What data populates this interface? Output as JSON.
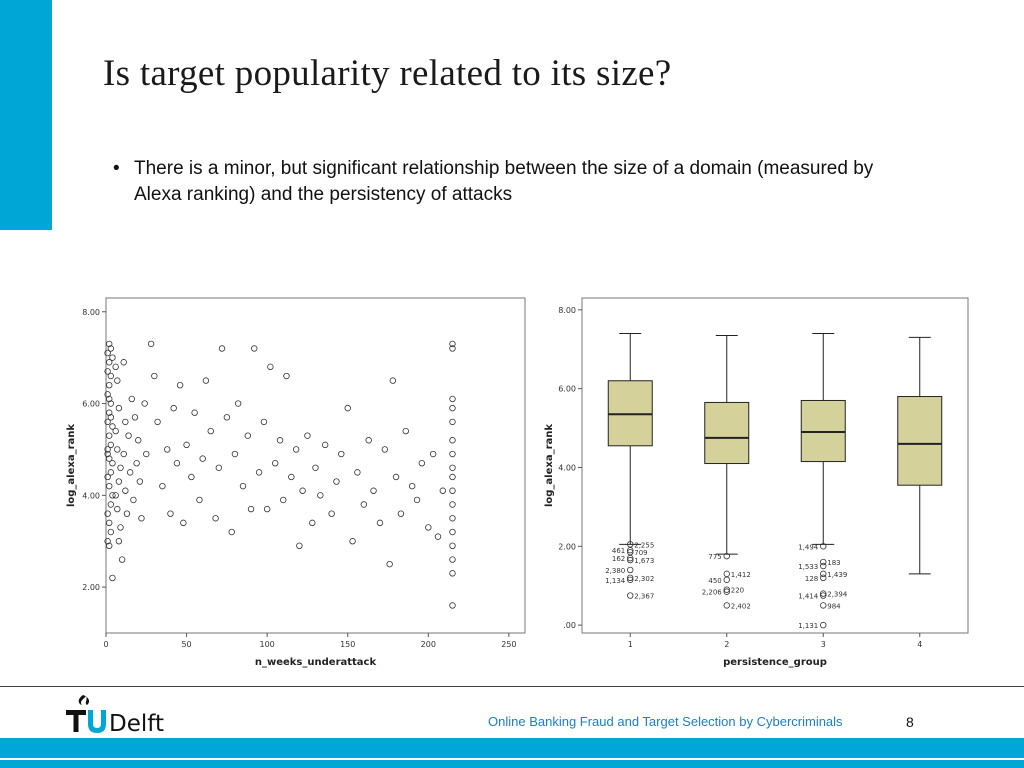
{
  "slide": {
    "title": "Is target popularity related to its size?",
    "bullet": "There is a minor, but significant relationship between the size of a domain (measured by Alexa ranking) and the persistency of attacks",
    "footer_text": "Online Banking Fraud and Target Selection by Cybercriminals",
    "page_number": "8",
    "logo_text": "TUDelft",
    "accent_color": "#00a6d6"
  },
  "chart_data": [
    {
      "type": "scatter",
      "xlabel": "n_weeks_underattack",
      "ylabel": "log_alexa_rank",
      "xlim": [
        0,
        260
      ],
      "ylim": [
        1.0,
        8.3
      ],
      "xticks": [
        0,
        50,
        100,
        150,
        200,
        250
      ],
      "xtick_labels": [
        "0",
        "50",
        "100",
        "150",
        "200",
        "250"
      ],
      "yticks": [
        2,
        4,
        6,
        8
      ],
      "ytick_labels": [
        "2.00",
        "4.00",
        "6.00",
        "8.00"
      ],
      "marker": "open-circle",
      "grid": false,
      "series": [
        {
          "points": [
            [
              2,
              7.3
            ],
            [
              3,
              7.2
            ],
            [
              1,
              7.1
            ],
            [
              2,
              6.9
            ],
            [
              4,
              7.0
            ],
            [
              1,
              6.7
            ],
            [
              3,
              6.6
            ],
            [
              2,
              6.4
            ],
            [
              1,
              6.2
            ],
            [
              3,
              6.0
            ],
            [
              2,
              5.8
            ],
            [
              1,
              5.6
            ],
            [
              4,
              5.5
            ],
            [
              2,
              5.3
            ],
            [
              3,
              5.1
            ],
            [
              1,
              5.0
            ],
            [
              2,
              4.8
            ],
            [
              4,
              4.7
            ],
            [
              3,
              4.5
            ],
            [
              1,
              4.4
            ],
            [
              2,
              4.2
            ],
            [
              4,
              4.0
            ],
            [
              3,
              3.8
            ],
            [
              1,
              3.6
            ],
            [
              2,
              3.4
            ],
            [
              3,
              3.2
            ],
            [
              1,
              3.0
            ],
            [
              2,
              2.9
            ],
            [
              4,
              2.2
            ],
            [
              1,
              4.9
            ],
            [
              3,
              5.7
            ],
            [
              2,
              6.1
            ],
            [
              6,
              6.8
            ],
            [
              7,
              6.5
            ],
            [
              8,
              5.9
            ],
            [
              6,
              5.4
            ],
            [
              7,
              5.0
            ],
            [
              9,
              4.6
            ],
            [
              8,
              4.3
            ],
            [
              6,
              4.0
            ],
            [
              7,
              3.7
            ],
            [
              9,
              3.3
            ],
            [
              8,
              3.0
            ],
            [
              10,
              2.6
            ],
            [
              11,
              6.9
            ],
            [
              12,
              5.6
            ],
            [
              11,
              4.9
            ],
            [
              12,
              4.1
            ],
            [
              13,
              3.6
            ],
            [
              14,
              5.3
            ],
            [
              15,
              4.5
            ],
            [
              16,
              6.1
            ],
            [
              17,
              3.9
            ],
            [
              18,
              5.7
            ],
            [
              19,
              4.7
            ],
            [
              20,
              5.2
            ],
            [
              21,
              4.3
            ],
            [
              22,
              3.5
            ],
            [
              24,
              6.0
            ],
            [
              25,
              4.9
            ],
            [
              28,
              7.3
            ],
            [
              30,
              6.6
            ],
            [
              32,
              5.6
            ],
            [
              35,
              4.2
            ],
            [
              38,
              5.0
            ],
            [
              40,
              3.6
            ],
            [
              42,
              5.9
            ],
            [
              44,
              4.7
            ],
            [
              46,
              6.4
            ],
            [
              48,
              3.4
            ],
            [
              50,
              5.1
            ],
            [
              53,
              4.4
            ],
            [
              55,
              5.8
            ],
            [
              58,
              3.9
            ],
            [
              60,
              4.8
            ],
            [
              62,
              6.5
            ],
            [
              65,
              5.4
            ],
            [
              68,
              3.5
            ],
            [
              70,
              4.6
            ],
            [
              72,
              7.2
            ],
            [
              75,
              5.7
            ],
            [
              78,
              3.2
            ],
            [
              80,
              4.9
            ],
            [
              82,
              6.0
            ],
            [
              85,
              4.2
            ],
            [
              88,
              5.3
            ],
            [
              90,
              3.7
            ],
            [
              92,
              7.2
            ],
            [
              95,
              4.5
            ],
            [
              98,
              5.6
            ],
            [
              100,
              3.7
            ],
            [
              102,
              6.8
            ],
            [
              105,
              4.7
            ],
            [
              108,
              5.2
            ],
            [
              110,
              3.9
            ],
            [
              112,
              6.6
            ],
            [
              115,
              4.4
            ],
            [
              118,
              5.0
            ],
            [
              120,
              2.9
            ],
            [
              122,
              4.1
            ],
            [
              125,
              5.3
            ],
            [
              128,
              3.4
            ],
            [
              130,
              4.6
            ],
            [
              133,
              4.0
            ],
            [
              136,
              5.1
            ],
            [
              140,
              3.6
            ],
            [
              143,
              4.3
            ],
            [
              146,
              4.9
            ],
            [
              150,
              5.9
            ],
            [
              153,
              3.0
            ],
            [
              156,
              4.5
            ],
            [
              160,
              3.8
            ],
            [
              163,
              5.2
            ],
            [
              166,
              4.1
            ],
            [
              170,
              3.4
            ],
            [
              173,
              5.0
            ],
            [
              176,
              2.5
            ],
            [
              178,
              6.5
            ],
            [
              180,
              4.4
            ],
            [
              183,
              3.6
            ],
            [
              186,
              5.4
            ],
            [
              190,
              4.2
            ],
            [
              193,
              3.9
            ],
            [
              196,
              4.7
            ],
            [
              200,
              3.3
            ],
            [
              203,
              4.9
            ],
            [
              206,
              3.1
            ],
            [
              209,
              4.1
            ],
            [
              215,
              7.3
            ],
            [
              215,
              7.2
            ],
            [
              215,
              6.1
            ],
            [
              215,
              5.9
            ],
            [
              215,
              5.6
            ],
            [
              215,
              5.2
            ],
            [
              215,
              4.9
            ],
            [
              215,
              4.6
            ],
            [
              215,
              4.4
            ],
            [
              215,
              4.1
            ],
            [
              215,
              3.8
            ],
            [
              215,
              3.5
            ],
            [
              215,
              3.2
            ],
            [
              215,
              2.9
            ],
            [
              215,
              2.6
            ],
            [
              215,
              2.3
            ],
            [
              215,
              1.6
            ]
          ]
        }
      ]
    },
    {
      "type": "box",
      "xlabel": "persistence_group",
      "ylabel": "log_alexa_rank",
      "ylim": [
        -0.2,
        8.3
      ],
      "yticks": [
        0,
        2,
        4,
        6,
        8
      ],
      "ytick_labels": [
        ".00",
        "2.00",
        "4.00",
        "6.00",
        "8.00"
      ],
      "categories": [
        "1",
        "2",
        "3",
        "4"
      ],
      "box_color": "#d5d19a",
      "boxes": [
        {
          "group": "1",
          "whisker_low": 2.05,
          "q1": 4.55,
          "median": 5.35,
          "q3": 6.2,
          "whisker_high": 7.4
        },
        {
          "group": "2",
          "whisker_low": 1.8,
          "q1": 4.1,
          "median": 4.75,
          "q3": 5.65,
          "whisker_high": 7.35
        },
        {
          "group": "3",
          "whisker_low": 2.05,
          "q1": 4.15,
          "median": 4.9,
          "q3": 5.7,
          "whisker_high": 7.4
        },
        {
          "group": "4",
          "whisker_low": 1.3,
          "q1": 3.55,
          "median": 4.6,
          "q3": 5.8,
          "whisker_high": 7.3
        }
      ],
      "outliers": [
        {
          "group": "1",
          "y": 2.05,
          "label": "2,255"
        },
        {
          "group": "1",
          "y": 1.9,
          "label": "461"
        },
        {
          "group": "1",
          "y": 1.85,
          "label": "709"
        },
        {
          "group": "1",
          "y": 1.7,
          "label": "162"
        },
        {
          "group": "1",
          "y": 1.65,
          "label": "1,673"
        },
        {
          "group": "1",
          "y": 1.4,
          "label": "2,380"
        },
        {
          "group": "1",
          "y": 1.2,
          "label": "2,302"
        },
        {
          "group": "1",
          "y": 1.15,
          "label": "1,134"
        },
        {
          "group": "1",
          "y": 0.75,
          "label": "2,367"
        },
        {
          "group": "2",
          "y": 1.75,
          "label": "775"
        },
        {
          "group": "2",
          "y": 1.3,
          "label": "1,412"
        },
        {
          "group": "2",
          "y": 1.15,
          "label": "450"
        },
        {
          "group": "2",
          "y": 0.9,
          "label": "220"
        },
        {
          "group": "2",
          "y": 0.85,
          "label": "2,206"
        },
        {
          "group": "2",
          "y": 0.5,
          "label": "2,402"
        },
        {
          "group": "3",
          "y": 2.0,
          "label": "1,494"
        },
        {
          "group": "3",
          "y": 1.6,
          "label": "183"
        },
        {
          "group": "3",
          "y": 1.5,
          "label": "1,533"
        },
        {
          "group": "3",
          "y": 1.3,
          "label": "1,439"
        },
        {
          "group": "3",
          "y": 1.2,
          "label": "128"
        },
        {
          "group": "3",
          "y": 0.8,
          "label": "2,394"
        },
        {
          "group": "3",
          "y": 0.75,
          "label": "1,414"
        },
        {
          "group": "3",
          "y": 0.5,
          "label": "984"
        },
        {
          "group": "3",
          "y": 0.0,
          "label": "1,131"
        }
      ]
    }
  ]
}
